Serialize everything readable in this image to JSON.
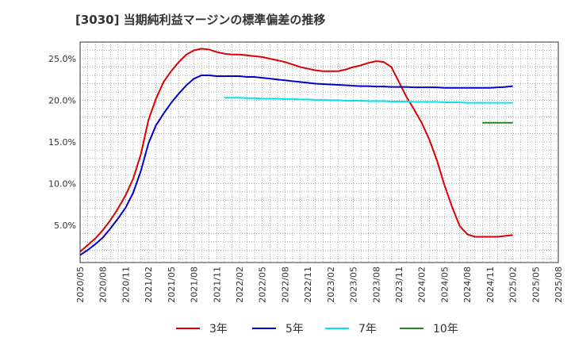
{
  "chart_data": {
    "type": "line",
    "title": "[3030]  当期純利益マージンの標準偏差の推移",
    "xlabel": "",
    "ylabel": "",
    "ylim": [
      0.5,
      27.0
    ],
    "y_ticks": [
      5.0,
      10.0,
      15.0,
      20.0,
      25.0
    ],
    "y_tick_labels": [
      "5.0%",
      "10.0%",
      "15.0%",
      "20.0%",
      "25.0%"
    ],
    "x_tick_labels": [
      "2020/05",
      "2020/08",
      "2020/11",
      "2021/02",
      "2021/05",
      "2021/08",
      "2021/11",
      "2022/02",
      "2022/05",
      "2022/08",
      "2022/11",
      "2023/02",
      "2023/05",
      "2023/08",
      "2023/11",
      "2024/02",
      "2024/05",
      "2024/08",
      "2024/11",
      "2025/02",
      "2025/05",
      "2025/08"
    ],
    "grid": true,
    "legend_position": "bottom",
    "series": [
      {
        "name": "3年",
        "color": "#dd0000",
        "start_index": 0,
        "values": [
          1.8,
          2.6,
          3.4,
          4.4,
          5.6,
          7.0,
          8.6,
          10.6,
          13.5,
          17.6,
          20.2,
          22.2,
          23.5,
          24.6,
          25.5,
          26.0,
          26.2,
          26.1,
          25.8,
          25.6,
          25.5,
          25.5,
          25.4,
          25.3,
          25.2,
          25.0,
          24.8,
          24.6,
          24.3,
          24.0,
          23.8,
          23.6,
          23.5,
          23.5,
          23.5,
          23.7,
          24.0,
          24.2,
          24.5,
          24.7,
          24.6,
          24.0,
          22.2,
          20.4,
          18.9,
          17.3,
          15.3,
          12.8,
          9.8,
          7.2,
          4.9,
          3.9,
          3.6,
          3.6,
          3.6,
          3.6,
          3.7,
          3.8
        ]
      },
      {
        "name": "5年",
        "color": "#0000cc",
        "start_index": 0,
        "values": [
          1.4,
          2.0,
          2.7,
          3.5,
          4.6,
          5.8,
          7.1,
          8.9,
          11.5,
          14.8,
          17.0,
          18.4,
          19.7,
          20.8,
          21.8,
          22.6,
          23.0,
          23.0,
          22.9,
          22.9,
          22.9,
          22.9,
          22.8,
          22.8,
          22.7,
          22.6,
          22.5,
          22.4,
          22.3,
          22.2,
          22.1,
          22.0,
          21.95,
          21.9,
          21.85,
          21.8,
          21.75,
          21.7,
          21.7,
          21.65,
          21.65,
          21.6,
          21.6,
          21.6,
          21.55,
          21.55,
          21.55,
          21.55,
          21.5,
          21.5,
          21.5,
          21.5,
          21.5,
          21.5,
          21.5,
          21.55,
          21.6,
          21.7
        ]
      },
      {
        "name": "7年",
        "color": "#00e5ee",
        "start_index": 19,
        "values": [
          20.3,
          20.3,
          20.3,
          20.25,
          20.25,
          20.2,
          20.2,
          20.2,
          20.15,
          20.15,
          20.1,
          20.1,
          20.05,
          20.05,
          20.0,
          20.0,
          19.95,
          19.95,
          19.95,
          19.9,
          19.9,
          19.9,
          19.85,
          19.85,
          19.85,
          19.8,
          19.8,
          19.8,
          19.8,
          19.75,
          19.75,
          19.75,
          19.7,
          19.7,
          19.7,
          19.7,
          19.7,
          19.7,
          19.7
        ]
      },
      {
        "name": "10年",
        "color": "#228822",
        "start_index": 53,
        "values": [
          17.3,
          17.3,
          17.3,
          17.3,
          17.3
        ]
      }
    ]
  }
}
